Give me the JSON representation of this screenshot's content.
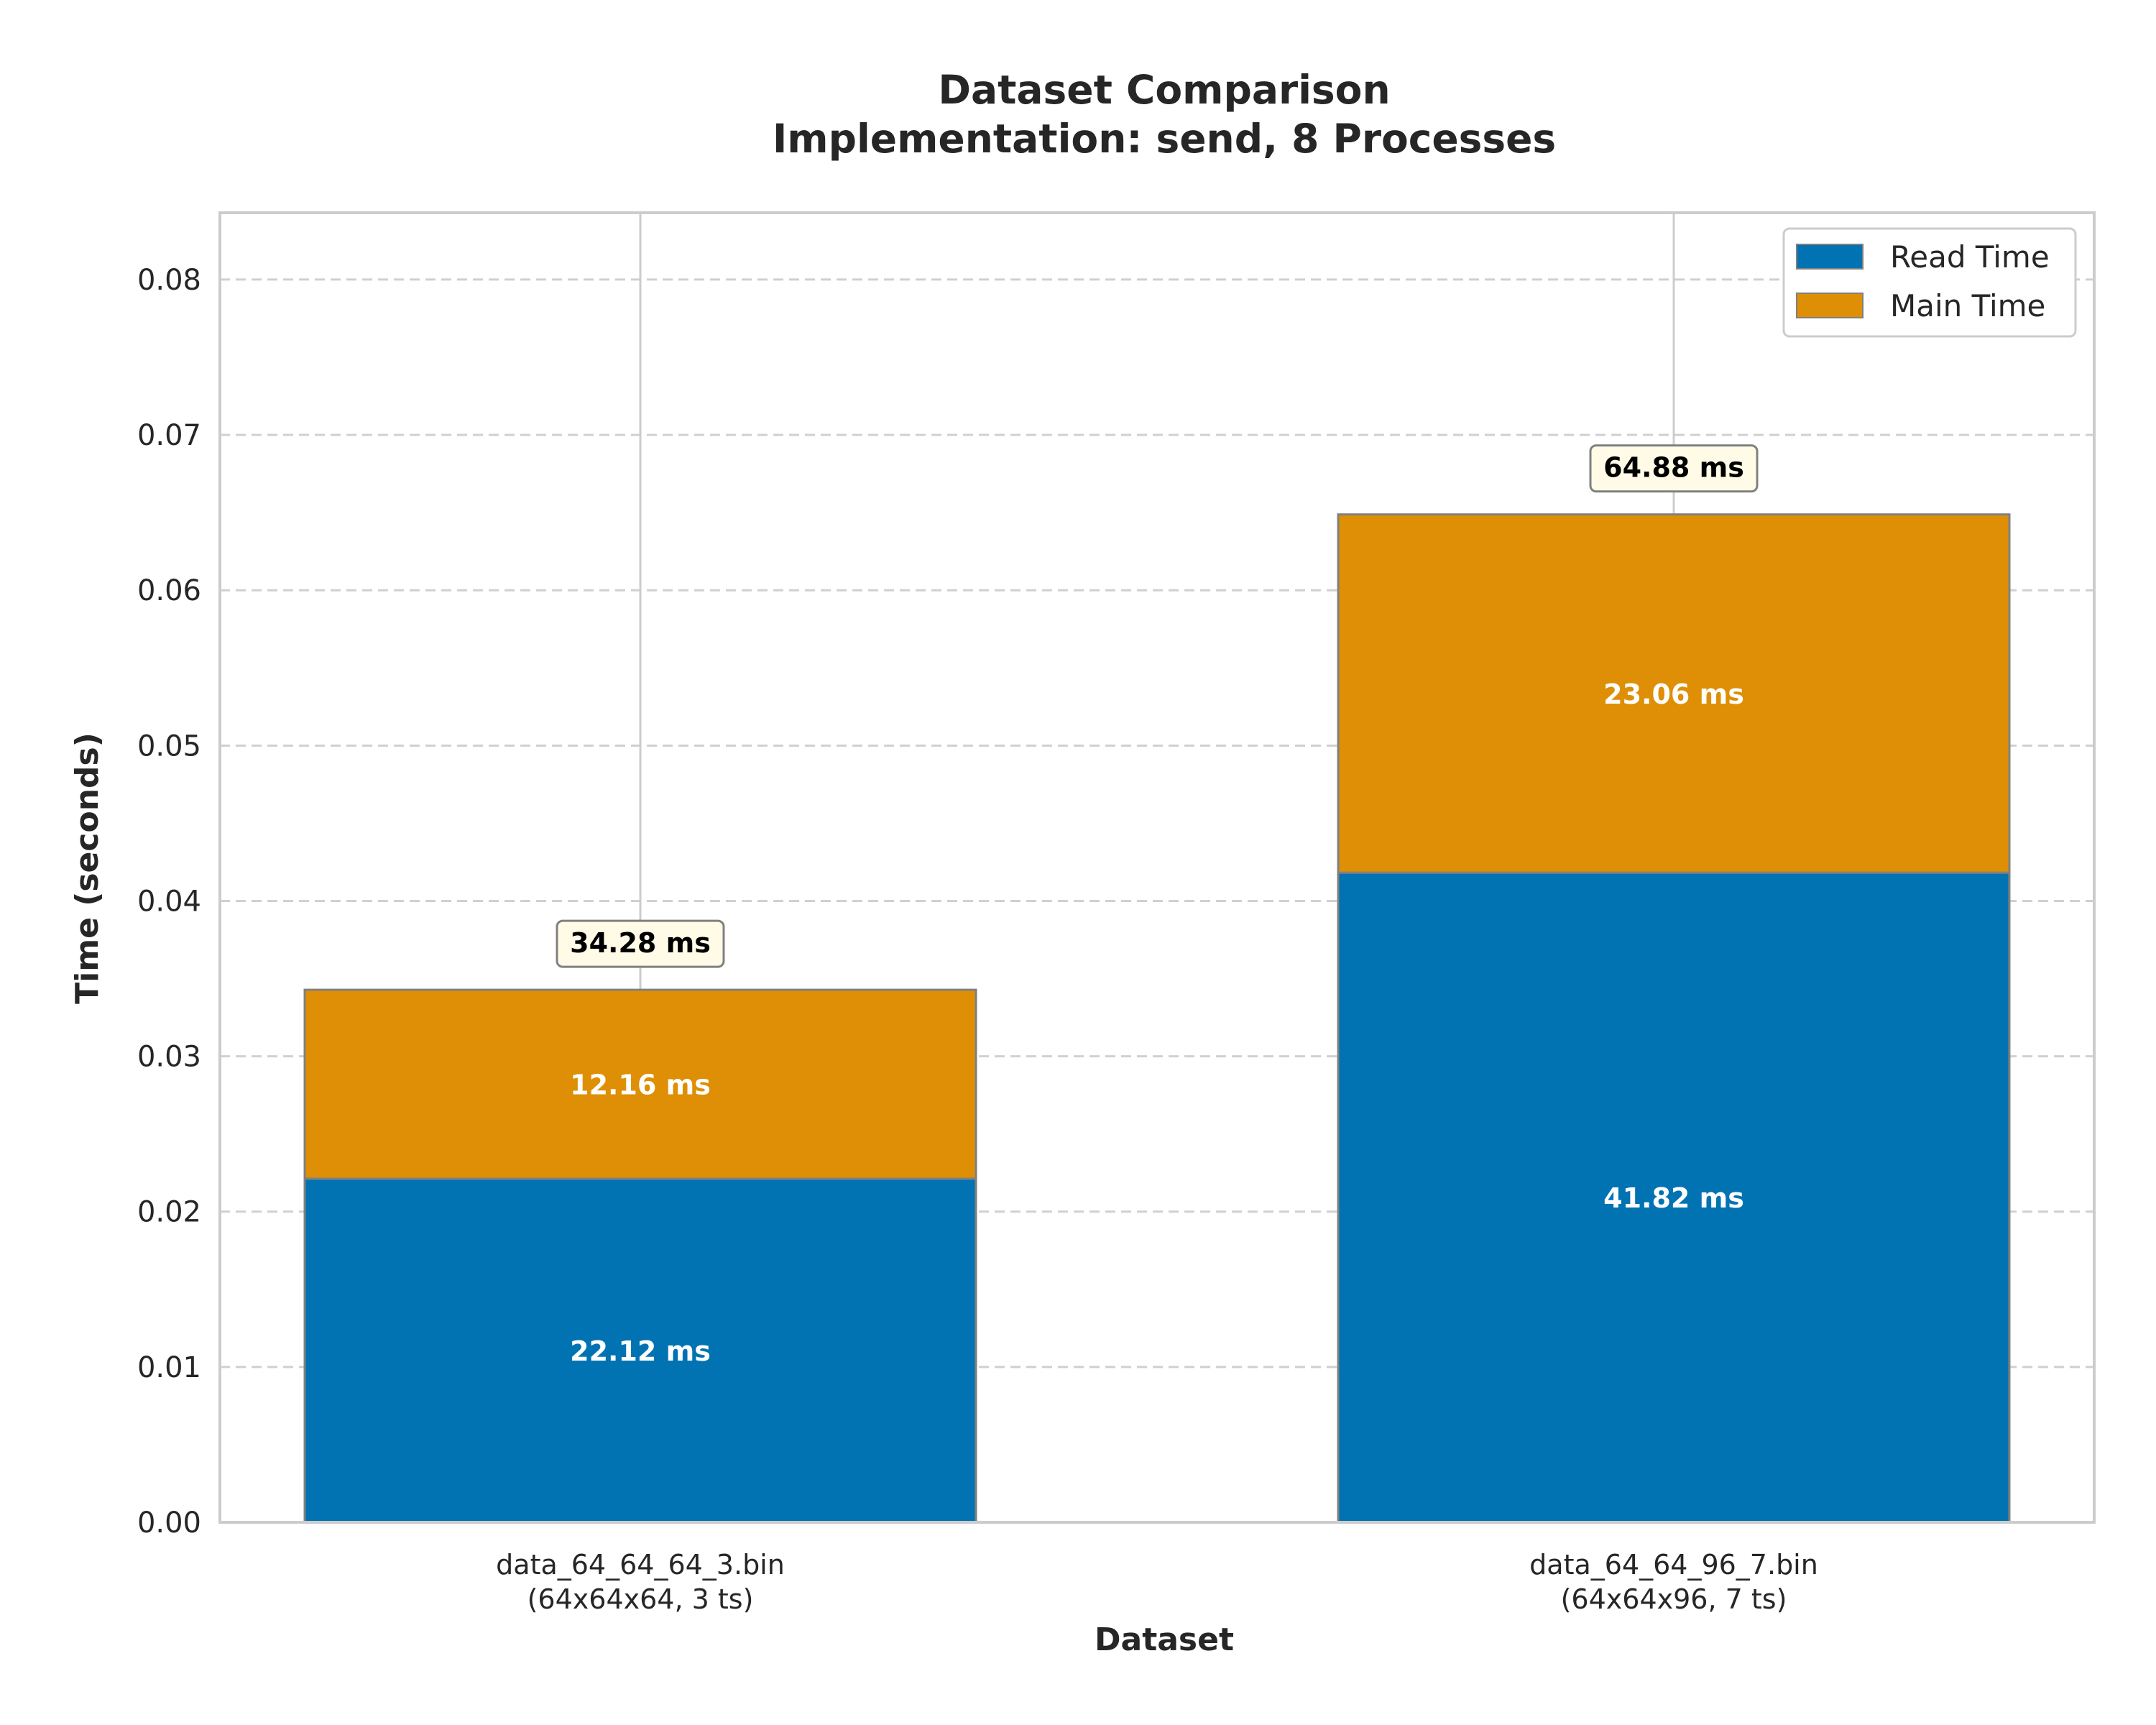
{
  "chart_data": {
    "type": "bar",
    "stacked": true,
    "title": "Dataset Comparison",
    "subtitle": "Implementation: send, 8 Processes",
    "xlabel": "Dataset",
    "ylabel": "Time (seconds)",
    "ylim": [
      0,
      0.0843
    ],
    "yticks": [
      0.0,
      0.01,
      0.02,
      0.03,
      0.04,
      0.05,
      0.06,
      0.07,
      0.08
    ],
    "ytick_labels": [
      "0.00",
      "0.01",
      "0.02",
      "0.03",
      "0.04",
      "0.05",
      "0.06",
      "0.07",
      "0.08"
    ],
    "categories": [
      {
        "name": "data_64_64_64_3.bin",
        "detail": "(64x64x64, 3 ts)"
      },
      {
        "name": "data_64_64_96_7.bin",
        "detail": "(64x64x96, 7 ts)"
      }
    ],
    "series": [
      {
        "name": "Read Time",
        "color": "#0173b2",
        "values": [
          0.02212,
          0.04182
        ],
        "labels": [
          "22.12 ms",
          "41.82 ms"
        ]
      },
      {
        "name": "Main Time",
        "color": "#de8f05",
        "values": [
          0.01216,
          0.02306
        ],
        "labels": [
          "12.16 ms",
          "23.06 ms"
        ]
      }
    ],
    "totals": {
      "values": [
        0.03428,
        0.06488
      ],
      "labels": [
        "34.28 ms",
        "64.88 ms"
      ]
    },
    "grid": {
      "y": "dashed",
      "x": "solid"
    },
    "legend": "top-right"
  }
}
